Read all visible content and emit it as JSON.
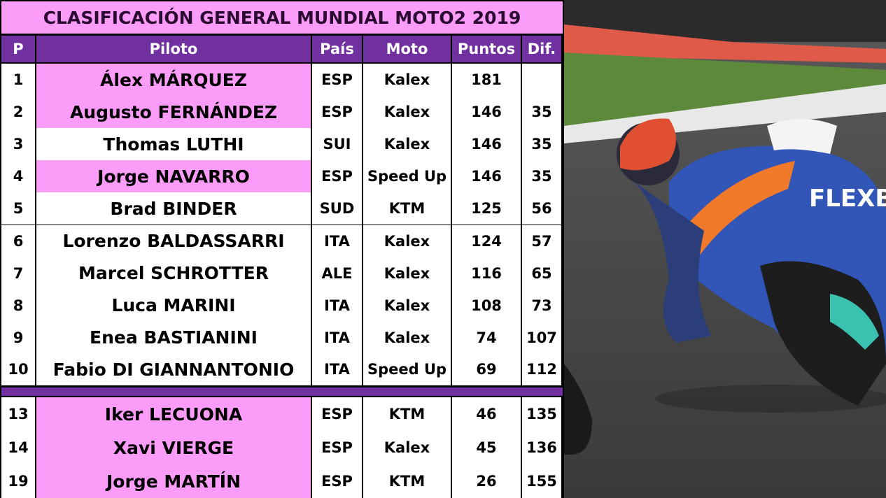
{
  "table": {
    "title": "CLASIFICACIÓN GENERAL MUNDIAL MOTO2 2019",
    "header_color": "#7030a0",
    "highlight_color": "#fb9cf9",
    "columns": [
      "P",
      "Piloto",
      "País",
      "Moto",
      "Puntos",
      "Dif."
    ],
    "rows": [
      {
        "cells": [
          "1",
          "Álex MÁRQUEZ",
          "ESP",
          "Kalex",
          "181",
          null
        ],
        "highlight": true
      },
      {
        "cells": [
          "2",
          "Augusto FERNÁNDEZ",
          "ESP",
          "Kalex",
          "146",
          "35"
        ],
        "highlight": true
      },
      {
        "cells": [
          "3",
          "Thomas LUTHI",
          "SUI",
          "Kalex",
          "146",
          "35"
        ],
        "highlight": false
      },
      {
        "cells": [
          "4",
          "Jorge NAVARRO",
          "ESP",
          "Speed Up",
          "146",
          "35"
        ],
        "highlight": true
      },
      {
        "cells": [
          "5",
          "Brad BINDER",
          "SUD",
          "KTM",
          "125",
          "56"
        ],
        "highlight": false
      },
      {
        "cells": [
          "6",
          "Lorenzo BALDASSARRI",
          "ITA",
          "Kalex",
          "124",
          "57"
        ],
        "highlight": false
      },
      {
        "cells": [
          "7",
          "Marcel SCHROTTER",
          "ALE",
          "Kalex",
          "116",
          "65"
        ],
        "highlight": false
      },
      {
        "cells": [
          "8",
          "Luca MARINI",
          "ITA",
          "Kalex",
          "108",
          "73"
        ],
        "highlight": false
      },
      {
        "cells": [
          "9",
          "Enea BASTIANINI",
          "ITA",
          "Kalex",
          "74",
          "107"
        ],
        "highlight": false
      },
      {
        "cells": [
          "10",
          "Fabio DI GIANNANTONIO",
          "ITA",
          "Speed Up",
          "69",
          "112"
        ],
        "highlight": false
      },
      {
        "cells": [
          "13",
          "Iker LECUONA",
          "ESP",
          "KTM",
          "46",
          "135"
        ],
        "highlight": true
      },
      {
        "cells": [
          "14",
          "Xavi VIERGE",
          "ESP",
          "Kalex",
          "45",
          "136"
        ],
        "highlight": true
      },
      {
        "cells": [
          "19",
          "Jorge MARTÍN",
          "ESP",
          "KTM",
          "26",
          "155"
        ],
        "highlight": true
      }
    ]
  }
}
